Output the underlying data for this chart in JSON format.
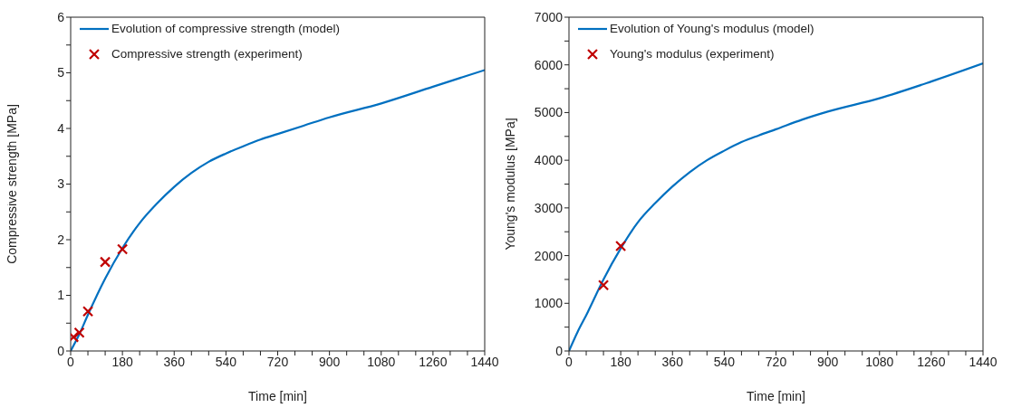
{
  "chart_data": [
    {
      "type": "line",
      "xlabel": "Time [min]",
      "ylabel": "Compressive strength [MPa]",
      "xlim": [
        0,
        1440
      ],
      "ylim": [
        0,
        6
      ],
      "xticks": [
        0,
        {
          "value": 60,
          "label": null
        },
        {
          "value": 120,
          "label": null
        },
        180,
        {
          "value": 240,
          "label": null
        },
        {
          "value": 300,
          "label": null
        },
        360,
        {
          "value": 420,
          "label": null
        },
        {
          "value": 480,
          "label": null
        },
        540,
        {
          "value": 600,
          "label": null
        },
        {
          "value": 660,
          "label": null
        },
        720,
        {
          "value": 780,
          "label": null
        },
        {
          "value": 840,
          "label": null
        },
        900,
        {
          "value": 960,
          "label": null
        },
        {
          "value": 1020,
          "label": null
        },
        1080,
        {
          "value": 1140,
          "label": null
        },
        {
          "value": 1200,
          "label": null
        },
        1260,
        {
          "value": 1320,
          "label": null
        },
        {
          "value": 1380,
          "label": null
        },
        1440
      ],
      "yticks": [
        0,
        {
          "value": 0.5,
          "label": null
        },
        1,
        {
          "value": 1.5,
          "label": null
        },
        2,
        {
          "value": 2.5,
          "label": null
        },
        3,
        {
          "value": 3.5,
          "label": null
        },
        4,
        {
          "value": 4.5,
          "label": null
        },
        5,
        {
          "value": 5.5,
          "label": null
        },
        6
      ],
      "grid": false,
      "legend": "top left",
      "series": [
        {
          "name": "Evolution of compressive strength (model)",
          "type": "line",
          "color": "#0070c0",
          "marker": "none",
          "line_style": "solid",
          "x": [
            0,
            30,
            60,
            120,
            180,
            240,
            300,
            360,
            420,
            480,
            540,
            600,
            660,
            720,
            810,
            900,
            1080,
            1260,
            1440
          ],
          "values": [
            0,
            0.3,
            0.65,
            1.3,
            1.85,
            2.3,
            2.65,
            2.95,
            3.2,
            3.4,
            3.55,
            3.68,
            3.8,
            3.9,
            4.05,
            4.2,
            4.45,
            4.75,
            5.05
          ]
        },
        {
          "name": "Compressive strength (experiment)",
          "type": "scatter",
          "color": "#c00000",
          "marker": "cross",
          "x": [
            10,
            30,
            60,
            120,
            180
          ],
          "values": [
            0.25,
            0.33,
            0.71,
            1.6,
            1.83
          ]
        }
      ]
    },
    {
      "type": "line",
      "xlabel": "Time [min]",
      "ylabel": "Young's modulus [MPa]",
      "xlim": [
        0,
        1440
      ],
      "ylim": [
        0,
        7000
      ],
      "xticks": [
        0,
        {
          "value": 60,
          "label": null
        },
        {
          "value": 120,
          "label": null
        },
        180,
        {
          "value": 240,
          "label": null
        },
        {
          "value": 300,
          "label": null
        },
        360,
        {
          "value": 420,
          "label": null
        },
        {
          "value": 480,
          "label": null
        },
        540,
        {
          "value": 600,
          "label": null
        },
        {
          "value": 660,
          "label": null
        },
        720,
        {
          "value": 780,
          "label": null
        },
        {
          "value": 840,
          "label": null
        },
        900,
        {
          "value": 960,
          "label": null
        },
        {
          "value": 1020,
          "label": null
        },
        1080,
        {
          "value": 1140,
          "label": null
        },
        {
          "value": 1200,
          "label": null
        },
        1260,
        {
          "value": 1320,
          "label": null
        },
        {
          "value": 1380,
          "label": null
        },
        1440
      ],
      "yticks": [
        0,
        {
          "value": 500,
          "label": null
        },
        1000,
        {
          "value": 1500,
          "label": null
        },
        2000,
        {
          "value": 2500,
          "label": null
        },
        3000,
        {
          "value": 3500,
          "label": null
        },
        4000,
        {
          "value": 4500,
          "label": null
        },
        5000,
        {
          "value": 5500,
          "label": null
        },
        6000,
        {
          "value": 6500,
          "label": null
        },
        7000
      ],
      "grid": false,
      "legend": "top left",
      "series": [
        {
          "name": "Evolution of Young's modulus (model)",
          "type": "line",
          "color": "#0070c0",
          "marker": "none",
          "line_style": "solid",
          "x": [
            0,
            30,
            60,
            120,
            180,
            240,
            300,
            360,
            420,
            480,
            540,
            600,
            660,
            720,
            810,
            900,
            1080,
            1260,
            1440
          ],
          "values": [
            0,
            400,
            750,
            1500,
            2150,
            2700,
            3100,
            3450,
            3750,
            4000,
            4200,
            4380,
            4520,
            4650,
            4850,
            5020,
            5300,
            5650,
            6030
          ]
        },
        {
          "name": "Young's modulus (experiment)",
          "type": "scatter",
          "color": "#c00000",
          "marker": "cross",
          "x": [
            120,
            180
          ],
          "values": [
            1380,
            2200
          ]
        }
      ]
    }
  ]
}
